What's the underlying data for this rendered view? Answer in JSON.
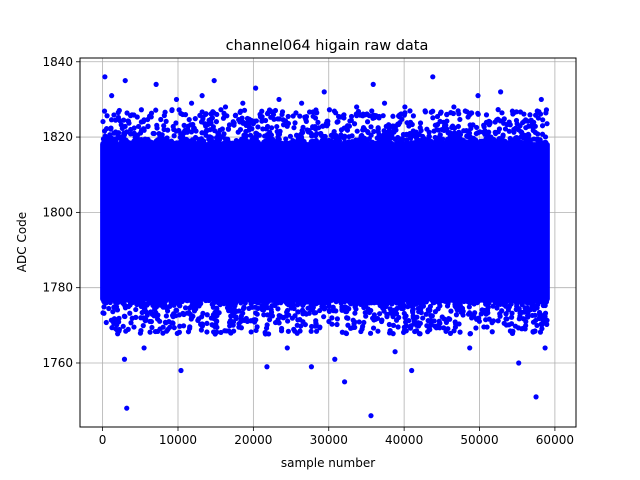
{
  "chart_data": {
    "type": "scatter",
    "title": "channel064 higain raw data",
    "xlabel": "sample number",
    "ylabel": "ADC Code",
    "xlim": [
      -3000,
      62800
    ],
    "ylim": [
      1743,
      1841
    ],
    "xticks": [
      0,
      10000,
      20000,
      30000,
      40000,
      50000,
      60000
    ],
    "yticks": [
      1760,
      1780,
      1800,
      1820,
      1840
    ],
    "xtick_labels": [
      "0",
      "10000",
      "20000",
      "30000",
      "40000",
      "50000",
      "60000"
    ],
    "ytick_labels": [
      "1760",
      "1780",
      "1800",
      "1820",
      "1840"
    ],
    "grid": true,
    "marker_color": "#0000ff",
    "dense_band": {
      "x_range": [
        0,
        59000
      ],
      "y_range": [
        1777,
        1818
      ],
      "note": "continuous dense band of samples filling this range"
    },
    "points": [
      [
        300,
        1836
      ],
      [
        1200,
        1831
      ],
      [
        3000,
        1835
      ],
      [
        3200,
        1748
      ],
      [
        2900,
        1761
      ],
      [
        5500,
        1764
      ],
      [
        7100,
        1834
      ],
      [
        9800,
        1830
      ],
      [
        10400,
        1758
      ],
      [
        11800,
        1829
      ],
      [
        13200,
        1831
      ],
      [
        14800,
        1835
      ],
      [
        16300,
        1828
      ],
      [
        18600,
        1829
      ],
      [
        20300,
        1833
      ],
      [
        21800,
        1759
      ],
      [
        23400,
        1830
      ],
      [
        24500,
        1764
      ],
      [
        26400,
        1829
      ],
      [
        27700,
        1759
      ],
      [
        29400,
        1832
      ],
      [
        30800,
        1761
      ],
      [
        32100,
        1755
      ],
      [
        33700,
        1828
      ],
      [
        35600,
        1746
      ],
      [
        35900,
        1834
      ],
      [
        37400,
        1829
      ],
      [
        38800,
        1763
      ],
      [
        40100,
        1828
      ],
      [
        41000,
        1758
      ],
      [
        43800,
        1836
      ],
      [
        46600,
        1828
      ],
      [
        48700,
        1764
      ],
      [
        49800,
        1831
      ],
      [
        52800,
        1832
      ],
      [
        55200,
        1760
      ],
      [
        57500,
        1751
      ],
      [
        58200,
        1830
      ],
      [
        58700,
        1764
      ]
    ]
  }
}
